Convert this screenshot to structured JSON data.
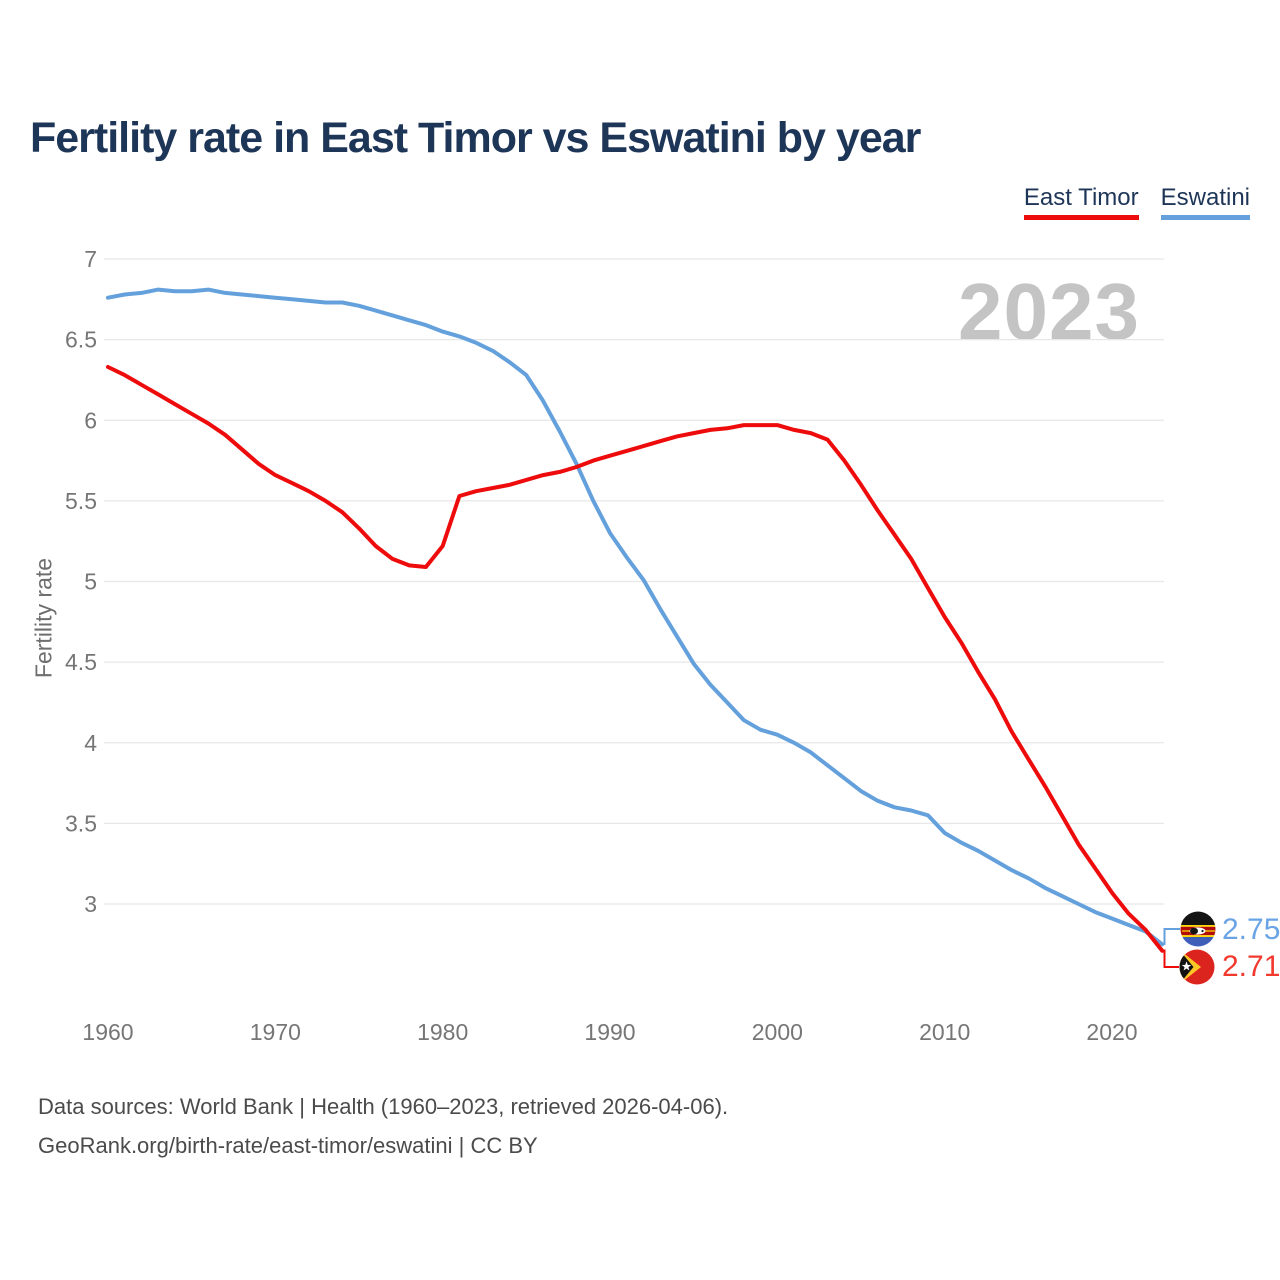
{
  "page": {
    "title": "Fertility rate in East Timor vs Eswatini by year"
  },
  "watermark": "2023",
  "legend": {
    "items": [
      {
        "label": "East Timor",
        "color": "#ee0b0b"
      },
      {
        "label": "Eswatini",
        "color": "#64a1dc"
      }
    ]
  },
  "end_labels": {
    "eswatini": {
      "value": "2.75",
      "flag": "eswatini-flag"
    },
    "east_timor": {
      "value": "2.71",
      "flag": "east-timor-flag"
    }
  },
  "footer": {
    "line1": "Data sources: World Bank | Health (1960–2023, retrieved 2026-04-06).",
    "line2": "GeoRank.org/birth-rate/east-timor/eswatini | CC BY"
  },
  "chart_data": {
    "type": "line",
    "title": "Fertility rate in East Timor vs Eswatini by year",
    "xlabel": "",
    "ylabel": "Fertility rate",
    "xlim": [
      1960,
      2023
    ],
    "ylim": [
      2.6,
      7.1
    ],
    "x_ticks": [
      1960,
      1970,
      1980,
      1990,
      2000,
      2010,
      2020
    ],
    "y_ticks": [
      7,
      6.5,
      6,
      5.5,
      5,
      4.5,
      4,
      3.5,
      3
    ],
    "grid": "horizontal",
    "legend_position": "top-right",
    "years": [
      1960,
      1961,
      1962,
      1963,
      1964,
      1965,
      1966,
      1967,
      1968,
      1969,
      1970,
      1971,
      1972,
      1973,
      1974,
      1975,
      1976,
      1977,
      1978,
      1979,
      1980,
      1981,
      1982,
      1983,
      1984,
      1985,
      1986,
      1987,
      1988,
      1989,
      1990,
      1991,
      1992,
      1993,
      1994,
      1995,
      1996,
      1997,
      1998,
      1999,
      2000,
      2001,
      2002,
      2003,
      2004,
      2005,
      2006,
      2007,
      2008,
      2009,
      2010,
      2011,
      2012,
      2013,
      2014,
      2015,
      2016,
      2017,
      2018,
      2019,
      2020,
      2021,
      2022,
      2023
    ],
    "series": [
      {
        "name": "East Timor",
        "color": "#ee0b0b",
        "final_value": 2.71,
        "values": [
          6.33,
          6.28,
          6.22,
          6.16,
          6.1,
          6.04,
          5.98,
          5.91,
          5.82,
          5.73,
          5.66,
          5.61,
          5.56,
          5.5,
          5.43,
          5.33,
          5.22,
          5.14,
          5.1,
          5.09,
          5.22,
          5.53,
          5.56,
          5.58,
          5.6,
          5.63,
          5.66,
          5.68,
          5.71,
          5.75,
          5.78,
          5.81,
          5.84,
          5.87,
          5.9,
          5.92,
          5.94,
          5.95,
          5.97,
          5.97,
          5.97,
          5.94,
          5.92,
          5.88,
          5.75,
          5.6,
          5.44,
          5.29,
          5.14,
          4.96,
          4.78,
          4.62,
          4.44,
          4.27,
          4.07,
          3.9,
          3.73,
          3.55,
          3.37,
          3.22,
          3.07,
          2.94,
          2.84,
          2.71
        ]
      },
      {
        "name": "Eswatini",
        "color": "#64a1dc",
        "final_value": 2.75,
        "values": [
          6.76,
          6.78,
          6.79,
          6.81,
          6.8,
          6.8,
          6.81,
          6.79,
          6.78,
          6.77,
          6.76,
          6.75,
          6.74,
          6.73,
          6.73,
          6.71,
          6.68,
          6.65,
          6.62,
          6.59,
          6.55,
          6.52,
          6.48,
          6.43,
          6.36,
          6.28,
          6.12,
          5.93,
          5.73,
          5.5,
          5.3,
          5.15,
          5.01,
          4.83,
          4.66,
          4.49,
          4.36,
          4.25,
          4.14,
          4.08,
          4.05,
          4.0,
          3.94,
          3.86,
          3.78,
          3.7,
          3.64,
          3.6,
          3.58,
          3.55,
          3.44,
          3.38,
          3.33,
          3.27,
          3.21,
          3.16,
          3.1,
          3.05,
          3.0,
          2.95,
          2.91,
          2.87,
          2.83,
          2.75
        ]
      }
    ]
  }
}
